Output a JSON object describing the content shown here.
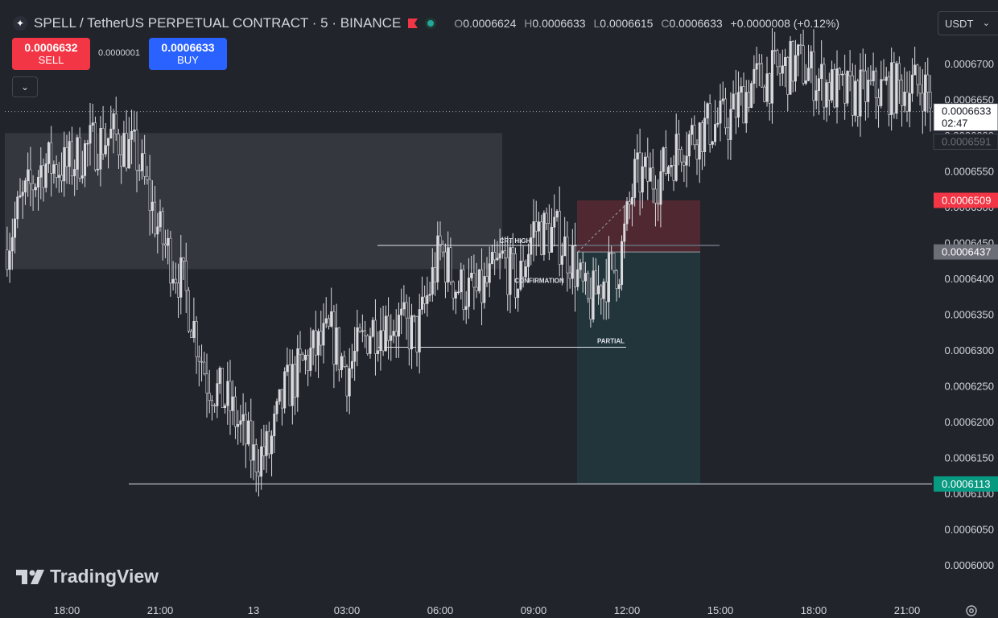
{
  "header": {
    "symbol": "SPELL / TetherUS PERPETUAL CONTRACT · 5 · BINANCE",
    "o_label": "O",
    "o_value": "0.0006624",
    "h_label": "H",
    "h_value": "0.0006633",
    "l_label": "L",
    "l_value": "0.0006615",
    "c_label": "C",
    "c_value": "0.0006633",
    "change": "+0.0000008 (+0.12%)"
  },
  "trade": {
    "sell_price": "0.0006632",
    "sell_label": "SELL",
    "buy_price": "0.0006633",
    "buy_label": "BUY",
    "spread": "0.0000001"
  },
  "currency": "USDT",
  "brand": "TradingView",
  "colors": {
    "bg": "#22242c",
    "candle": "#d9dade",
    "red": "#f23645",
    "green": "#26a69a",
    "grey_tag": "#6b6e77",
    "white_tag": "#ffffff"
  },
  "chart_data": {
    "type": "candlestick",
    "ylim": [
      0.000597,
      0.000677
    ],
    "y_ticks": [
      "0.0006700",
      "0.0006650",
      "0.0006600",
      "0.0006550",
      "0.0006500",
      "0.0006450",
      "0.0006400",
      "0.0006350",
      "0.0006300",
      "0.0006250",
      "0.0006200",
      "0.0006150",
      "0.0006100",
      "0.0006050",
      "0.0006000"
    ],
    "x_ticks": [
      "18:00",
      "21:00",
      "13",
      "03:00",
      "06:00",
      "09:00",
      "12:00",
      "15:00",
      "18:00",
      "21:00"
    ],
    "price_path": [
      {
        "time": "16:00",
        "price": 0.000644
      },
      {
        "time": "16:30",
        "price": 0.00065
      },
      {
        "time": "17:15",
        "price": 0.000656
      },
      {
        "time": "18:00",
        "price": 0.0006555
      },
      {
        "time": "18:45",
        "price": 0.0006585
      },
      {
        "time": "19:30",
        "price": 0.00066
      },
      {
        "time": "20:15",
        "price": 0.000657
      },
      {
        "time": "21:00",
        "price": 0.000646
      },
      {
        "time": "21:45",
        "price": 0.000639
      },
      {
        "time": "22:30",
        "price": 0.000626
      },
      {
        "time": "23:15",
        "price": 0.000622
      },
      {
        "time": "00:00",
        "price": 0.000615
      },
      {
        "time": "00:30",
        "price": 0.000616
      },
      {
        "time": "01:00",
        "price": 0.000624
      },
      {
        "time": "01:45",
        "price": 0.000629
      },
      {
        "time": "02:30",
        "price": 0.000632
      },
      {
        "time": "03:00",
        "price": 0.000627
      },
      {
        "time": "03:45",
        "price": 0.000633
      },
      {
        "time": "04:30",
        "price": 0.000634
      },
      {
        "time": "05:15",
        "price": 0.000632
      },
      {
        "time": "06:00",
        "price": 0.000644
      },
      {
        "time": "06:30",
        "price": 0.000639
      },
      {
        "time": "07:15",
        "price": 0.0006375
      },
      {
        "time": "08:00",
        "price": 0.0006425
      },
      {
        "time": "08:30",
        "price": 0.000639
      },
      {
        "time": "09:00",
        "price": 0.000647
      },
      {
        "time": "09:45",
        "price": 0.000646
      },
      {
        "time": "10:15",
        "price": 0.0006425
      },
      {
        "time": "10:45",
        "price": 0.000636
      },
      {
        "time": "11:15",
        "price": 0.00064
      },
      {
        "time": "11:45",
        "price": 0.000642
      },
      {
        "time": "12:15",
        "price": 0.000654
      },
      {
        "time": "13:00",
        "price": 0.000654
      },
      {
        "time": "13:45",
        "price": 0.000659
      },
      {
        "time": "14:30",
        "price": 0.000661
      },
      {
        "time": "15:15",
        "price": 0.000662
      },
      {
        "time": "16:00",
        "price": 0.000667
      },
      {
        "time": "17:00",
        "price": 0.000669
      },
      {
        "time": "17:30",
        "price": 0.00067
      },
      {
        "time": "18:15",
        "price": 0.0006675
      },
      {
        "time": "19:00",
        "price": 0.0006655
      },
      {
        "time": "19:45",
        "price": 0.000666
      },
      {
        "time": "20:30",
        "price": 0.0006665
      },
      {
        "time": "21:30",
        "price": 0.000667
      },
      {
        "time": "22:00",
        "price": 0.0006633
      }
    ],
    "zones": [
      {
        "name": "supply-zone",
        "y_top": 0.0006603,
        "y_bottom": 0.0006413
      },
      {
        "name": "stop-zone",
        "y_top": 0.0006509,
        "y_bottom": 0.0006437
      },
      {
        "name": "target-zone",
        "y_top": 0.0006437,
        "y_bottom": 0.0006113
      }
    ],
    "levels": [
      {
        "label": "CRT HIGH",
        "price": 0.0006446
      },
      {
        "label": "CONFIRMATION",
        "price": 0.0006397
      },
      {
        "label": "PARTIAL",
        "price": 0.0006304
      },
      {
        "label": "",
        "price": 0.0006113
      }
    ],
    "price_tags": [
      {
        "text": "0.0006633",
        "subtext": "02:47",
        "price": 0.0006633,
        "style": "white"
      },
      {
        "text": "0.0006591",
        "subtext": "",
        "price": 0.0006591,
        "style": "ghost"
      },
      {
        "text": "0.0006509",
        "subtext": "",
        "price": 0.0006509,
        "style": "red"
      },
      {
        "text": "0.0006437",
        "subtext": "",
        "price": 0.0006437,
        "style": "grey"
      },
      {
        "text": "0.0006113",
        "subtext": "",
        "price": 0.0006113,
        "style": "green"
      }
    ],
    "last_price": 0.0006633
  }
}
